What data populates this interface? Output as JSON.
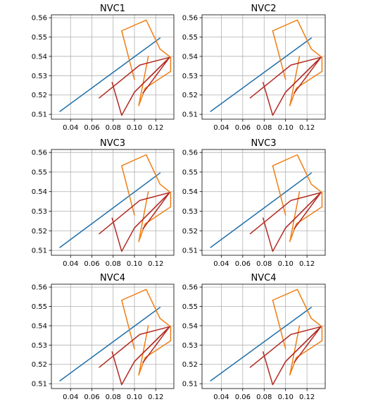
{
  "figure": {
    "background": "#ffffff",
    "grid_color": "#b0b0b0",
    "colors": {
      "blue": "#1f6faa",
      "orange": "#f07f14",
      "red": "#b22a22"
    }
  },
  "chart_data": [
    {
      "type": "line",
      "title": "NVC1",
      "grid": true,
      "xlim": [
        0.022,
        0.137
      ],
      "ylim": [
        0.5075,
        0.5615
      ],
      "xticks": [
        "0.04",
        "0.06",
        "0.08",
        "0.10",
        "0.12"
      ],
      "yticks": [
        "0.51",
        "0.52",
        "0.53",
        "0.54",
        "0.55",
        "0.56"
      ],
      "series": [
        {
          "color": "#1f6faa",
          "x": [
            0.03,
            0.124
          ],
          "y": [
            0.5115,
            0.5495
          ]
        },
        {
          "color": "#f07f14",
          "x": [
            0.088,
            0.111,
            0.124,
            0.134,
            0.134,
            0.11,
            0.104,
            0.113
          ],
          "y": [
            0.5532,
            0.5588,
            0.5438,
            0.5395,
            0.5322,
            0.5235,
            0.5145,
            0.54
          ]
        },
        {
          "color": "#f07f14",
          "x": [
            0.088,
            0.1
          ],
          "y": [
            0.5532,
            0.528
          ]
        },
        {
          "color": "#b22a22",
          "x": [
            0.067,
            0.105,
            0.133,
            0.1,
            0.088,
            0.079
          ],
          "y": [
            0.5185,
            0.5355,
            0.5395,
            0.5215,
            0.5095,
            0.5265
          ]
        },
        {
          "color": "#b22a22",
          "x": [
            0.1,
            0.133,
            0.108
          ],
          "y": [
            0.5215,
            0.5395,
            0.521
          ]
        }
      ]
    },
    {
      "type": "line",
      "title": "NVC2",
      "grid": true,
      "xlim": [
        0.022,
        0.137
      ],
      "ylim": [
        0.5075,
        0.5615
      ],
      "xticks": [
        "0.04",
        "0.06",
        "0.08",
        "0.10",
        "0.12"
      ],
      "yticks": [
        "0.51",
        "0.52",
        "0.53",
        "0.54",
        "0.55",
        "0.56"
      ],
      "series": [
        {
          "color": "#1f6faa",
          "x": [
            0.03,
            0.124
          ],
          "y": [
            0.5115,
            0.5495
          ]
        },
        {
          "color": "#f07f14",
          "x": [
            0.088,
            0.111,
            0.124,
            0.134,
            0.134,
            0.11,
            0.104,
            0.113
          ],
          "y": [
            0.5532,
            0.5588,
            0.5438,
            0.5395,
            0.5322,
            0.5235,
            0.5145,
            0.54
          ]
        },
        {
          "color": "#f07f14",
          "x": [
            0.088,
            0.1
          ],
          "y": [
            0.5532,
            0.528
          ]
        },
        {
          "color": "#b22a22",
          "x": [
            0.067,
            0.105,
            0.133,
            0.1,
            0.088,
            0.079
          ],
          "y": [
            0.5185,
            0.5355,
            0.5395,
            0.5215,
            0.5095,
            0.5265
          ]
        },
        {
          "color": "#b22a22",
          "x": [
            0.1,
            0.133,
            0.108
          ],
          "y": [
            0.5215,
            0.5395,
            0.521
          ]
        }
      ]
    },
    {
      "type": "line",
      "title": "NVC3",
      "grid": true,
      "xlim": [
        0.022,
        0.137
      ],
      "ylim": [
        0.5075,
        0.5615
      ],
      "xticks": [
        "0.04",
        "0.06",
        "0.08",
        "0.10",
        "0.12"
      ],
      "yticks": [
        "0.51",
        "0.52",
        "0.53",
        "0.54",
        "0.55",
        "0.56"
      ],
      "series": [
        {
          "color": "#1f6faa",
          "x": [
            0.03,
            0.124
          ],
          "y": [
            0.5115,
            0.5495
          ]
        },
        {
          "color": "#f07f14",
          "x": [
            0.088,
            0.111,
            0.124,
            0.134,
            0.134,
            0.11,
            0.104,
            0.113
          ],
          "y": [
            0.5532,
            0.5588,
            0.5438,
            0.5395,
            0.5322,
            0.5235,
            0.5145,
            0.54
          ]
        },
        {
          "color": "#f07f14",
          "x": [
            0.088,
            0.1
          ],
          "y": [
            0.5532,
            0.528
          ]
        },
        {
          "color": "#b22a22",
          "x": [
            0.067,
            0.105,
            0.133,
            0.1,
            0.088,
            0.079
          ],
          "y": [
            0.5185,
            0.5355,
            0.5395,
            0.5215,
            0.5095,
            0.5265
          ]
        },
        {
          "color": "#b22a22",
          "x": [
            0.1,
            0.133,
            0.108
          ],
          "y": [
            0.5215,
            0.5395,
            0.521
          ]
        }
      ]
    },
    {
      "type": "line",
      "title": "NVC3",
      "grid": true,
      "xlim": [
        0.022,
        0.137
      ],
      "ylim": [
        0.5075,
        0.5615
      ],
      "xticks": [
        "0.04",
        "0.06",
        "0.08",
        "0.10",
        "0.12"
      ],
      "yticks": [
        "0.51",
        "0.52",
        "0.53",
        "0.54",
        "0.55",
        "0.56"
      ],
      "series": [
        {
          "color": "#1f6faa",
          "x": [
            0.03,
            0.124
          ],
          "y": [
            0.5115,
            0.5495
          ]
        },
        {
          "color": "#f07f14",
          "x": [
            0.088,
            0.111,
            0.124,
            0.134,
            0.134,
            0.11,
            0.104,
            0.113
          ],
          "y": [
            0.5532,
            0.5588,
            0.5438,
            0.5395,
            0.5322,
            0.5235,
            0.5145,
            0.54
          ]
        },
        {
          "color": "#f07f14",
          "x": [
            0.088,
            0.1
          ],
          "y": [
            0.5532,
            0.528
          ]
        },
        {
          "color": "#b22a22",
          "x": [
            0.067,
            0.105,
            0.133,
            0.1,
            0.088,
            0.079
          ],
          "y": [
            0.5185,
            0.5355,
            0.5395,
            0.5215,
            0.5095,
            0.5265
          ]
        },
        {
          "color": "#b22a22",
          "x": [
            0.1,
            0.133,
            0.108
          ],
          "y": [
            0.5215,
            0.5395,
            0.521
          ]
        }
      ]
    },
    {
      "type": "line",
      "title": "NVC4",
      "grid": true,
      "xlim": [
        0.022,
        0.137
      ],
      "ylim": [
        0.5075,
        0.5615
      ],
      "xticks": [
        "0.04",
        "0.06",
        "0.08",
        "0.10",
        "0.12"
      ],
      "yticks": [
        "0.51",
        "0.52",
        "0.53",
        "0.54",
        "0.55",
        "0.56"
      ],
      "series": [
        {
          "color": "#1f6faa",
          "x": [
            0.03,
            0.124
          ],
          "y": [
            0.5115,
            0.5495
          ]
        },
        {
          "color": "#f07f14",
          "x": [
            0.088,
            0.111,
            0.124,
            0.134,
            0.134,
            0.11,
            0.104,
            0.113
          ],
          "y": [
            0.5532,
            0.5588,
            0.5438,
            0.5395,
            0.5322,
            0.5235,
            0.5145,
            0.54
          ]
        },
        {
          "color": "#f07f14",
          "x": [
            0.088,
            0.1
          ],
          "y": [
            0.5532,
            0.528
          ]
        },
        {
          "color": "#b22a22",
          "x": [
            0.067,
            0.105,
            0.133,
            0.1,
            0.088,
            0.079
          ],
          "y": [
            0.5185,
            0.5355,
            0.5395,
            0.5215,
            0.5095,
            0.5265
          ]
        },
        {
          "color": "#b22a22",
          "x": [
            0.1,
            0.133,
            0.108
          ],
          "y": [
            0.5215,
            0.5395,
            0.521
          ]
        }
      ]
    },
    {
      "type": "line",
      "title": "NVC4",
      "grid": true,
      "xlim": [
        0.022,
        0.137
      ],
      "ylim": [
        0.5075,
        0.5615
      ],
      "xticks": [
        "0.04",
        "0.06",
        "0.08",
        "0.10",
        "0.12"
      ],
      "yticks": [
        "0.51",
        "0.52",
        "0.53",
        "0.54",
        "0.55",
        "0.56"
      ],
      "series": [
        {
          "color": "#1f6faa",
          "x": [
            0.03,
            0.124
          ],
          "y": [
            0.5115,
            0.5495
          ]
        },
        {
          "color": "#f07f14",
          "x": [
            0.088,
            0.111,
            0.124,
            0.134,
            0.134,
            0.11,
            0.104,
            0.113
          ],
          "y": [
            0.5532,
            0.5588,
            0.5438,
            0.5395,
            0.5322,
            0.5235,
            0.5145,
            0.54
          ]
        },
        {
          "color": "#f07f14",
          "x": [
            0.088,
            0.1
          ],
          "y": [
            0.5532,
            0.528
          ]
        },
        {
          "color": "#b22a22",
          "x": [
            0.067,
            0.105,
            0.133,
            0.1,
            0.088,
            0.079
          ],
          "y": [
            0.5185,
            0.5355,
            0.5395,
            0.5215,
            0.5095,
            0.5265
          ]
        },
        {
          "color": "#b22a22",
          "x": [
            0.1,
            0.133,
            0.108
          ],
          "y": [
            0.5215,
            0.5395,
            0.521
          ]
        }
      ]
    }
  ]
}
